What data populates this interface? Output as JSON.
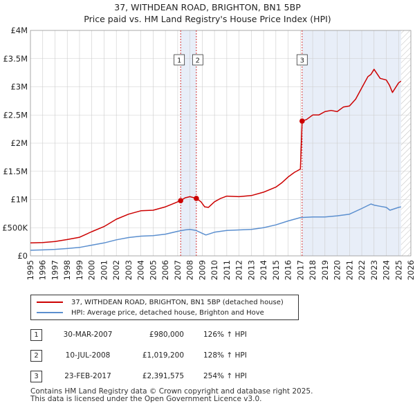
{
  "chart_data": {
    "type": "line",
    "title": "37, WITHDEAN ROAD, BRIGHTON, BN1 5BP",
    "subtitle": "Price paid vs. HM Land Registry's House Price Index (HPI)",
    "xlabel": "",
    "ylabel": "",
    "xlim": [
      1995,
      2026
    ],
    "ylim": [
      0,
      4000000
    ],
    "x_ticks": [
      "1995",
      "1996",
      "1997",
      "1998",
      "1999",
      "2000",
      "2001",
      "2002",
      "2003",
      "2004",
      "2005",
      "2006",
      "2007",
      "2008",
      "2009",
      "2010",
      "2011",
      "2012",
      "2013",
      "2014",
      "2015",
      "2016",
      "2017",
      "2018",
      "2019",
      "2020",
      "2021",
      "2022",
      "2023",
      "2024",
      "2025",
      "2026"
    ],
    "y_ticks": [
      {
        "value": 0,
        "label": "£0"
      },
      {
        "value": 500000,
        "label": "£500K"
      },
      {
        "value": 1000000,
        "label": "£1M"
      },
      {
        "value": 1500000,
        "label": "£1.5M"
      },
      {
        "value": 2000000,
        "label": "£2M"
      },
      {
        "value": 2500000,
        "label": "£2.5M"
      },
      {
        "value": 3000000,
        "label": "£3M"
      },
      {
        "value": 3500000,
        "label": "£3.5M"
      },
      {
        "value": 4000000,
        "label": "£4M"
      }
    ],
    "series": [
      {
        "name": "37, WITHDEAN ROAD, BRIGHTON, BN1 5BP (detached house)",
        "color": "#cc0000",
        "x": [
          1995,
          1996,
          1997,
          1998,
          1999,
          2000,
          2001,
          2002,
          2003,
          2004,
          2005,
          2006,
          2007.24,
          2007.6,
          2008.0,
          2008.52,
          2008.9,
          2009.2,
          2009.5,
          2010,
          2010.5,
          2011,
          2012,
          2013,
          2014,
          2015,
          2015.5,
          2016,
          2016.5,
          2017.0,
          2017.14,
          2017.5,
          2018,
          2018.5,
          2019,
          2019.5,
          2020,
          2020.5,
          2021,
          2021.5,
          2022,
          2022.5,
          2022.75,
          2023,
          2023.5,
          2024,
          2024.25,
          2024.5,
          2025,
          2025.2
        ],
        "y": [
          230000,
          235000,
          255000,
          290000,
          330000,
          430000,
          520000,
          650000,
          740000,
          800000,
          810000,
          870000,
          980000,
          1030000,
          1050000,
          1019200,
          960000,
          870000,
          860000,
          960000,
          1020000,
          1060000,
          1050000,
          1070000,
          1130000,
          1220000,
          1300000,
          1400000,
          1480000,
          1540000,
          2391575,
          2420000,
          2500000,
          2500000,
          2560000,
          2580000,
          2560000,
          2640000,
          2660000,
          2780000,
          2980000,
          3180000,
          3220000,
          3310000,
          3150000,
          3120000,
          3030000,
          2900000,
          3070000,
          3100000
        ]
      },
      {
        "name": "HPI: Average price, detached house, Brighton and Hove",
        "color": "#5b8fcf",
        "x": [
          1995,
          1996,
          1997,
          1998,
          1999,
          2000,
          2001,
          2002,
          2003,
          2004,
          2005,
          2006,
          2007,
          2007.6,
          2008,
          2008.5,
          2009,
          2009.3,
          2010,
          2011,
          2012,
          2013,
          2014,
          2015,
          2016,
          2017,
          2018,
          2019,
          2020,
          2021,
          2022,
          2022.75,
          2023,
          2023.5,
          2024,
          2024.3,
          2025,
          2025.2
        ],
        "y": [
          100000,
          105000,
          115000,
          130000,
          150000,
          190000,
          230000,
          285000,
          325000,
          350000,
          360000,
          385000,
          435000,
          460000,
          470000,
          450000,
          400000,
          370000,
          420000,
          450000,
          460000,
          470000,
          500000,
          550000,
          620000,
          680000,
          690000,
          690000,
          710000,
          740000,
          840000,
          920000,
          900000,
          880000,
          860000,
          810000,
          860000,
          870000
        ]
      }
    ],
    "sales": [
      {
        "num": "1",
        "date": "30-MAR-2007",
        "x": 2007.24,
        "price": "£980,000",
        "value": 980000,
        "hpi": "126% ↑ HPI"
      },
      {
        "num": "2",
        "date": "10-JUL-2008",
        "x": 2008.52,
        "price": "£1,019,200",
        "value": 1019200,
        "hpi": "128% ↑ HPI"
      },
      {
        "num": "3",
        "date": "23-FEB-2017",
        "x": 2017.14,
        "price": "£2,391,575",
        "value": 2391575,
        "hpi": "254% ↑ HPI"
      }
    ],
    "legend": [
      {
        "label": "37, WITHDEAN ROAD, BRIGHTON, BN1 5BP (detached house)",
        "color": "#cc0000"
      },
      {
        "label": "HPI: Average price, detached house, Brighton and Hove",
        "color": "#5b8fcf"
      }
    ],
    "forecast_start": 2025.2,
    "grid": true,
    "legend_position": "bottom"
  },
  "footer": {
    "line1": "Contains HM Land Registry data © Crown copyright and database right 2025.",
    "line2": "This data is licensed under the Open Government Licence v3.0."
  }
}
